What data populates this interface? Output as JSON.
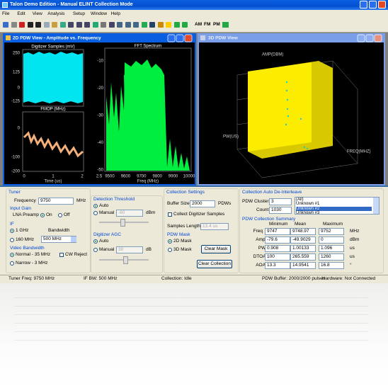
{
  "window_title": "Talon Demo Edition - Manual ELINT Collection Mode",
  "menu": [
    "File",
    "Edit",
    "View",
    "Analysis",
    "Setup",
    "Window",
    "Help"
  ],
  "toolbar": [
    "AM",
    "FM",
    "PM"
  ],
  "view_2d": {
    "title": "2D PDW View - Amplitude vs. Frequency",
    "digitizer": {
      "title": "Digitizer Samples (mV)",
      "yticks": [
        "250",
        "125",
        "0",
        "-125"
      ]
    },
    "fmop": {
      "title": "FMOP (MHz)",
      "yticks": [
        "0",
        "-100",
        "-200"
      ],
      "xticks": [
        "0",
        "1",
        "2",
        "2.5"
      ],
      "xlabel": "Time (us)"
    },
    "fft": {
      "title": "FFT Spectrum",
      "yticks": [
        "-10",
        "-20",
        "-30",
        "-40",
        "-50"
      ],
      "xticks": [
        "9500",
        "9600",
        "9700",
        "9800",
        "9900",
        "10000"
      ],
      "xlabel": "Freq (MHz)"
    }
  },
  "view_3d": {
    "title": "3D PDW View",
    "z_label": "AMP(DBM)",
    "y_label": "PW(US)",
    "x_label": "FREQ(MHZ)"
  },
  "tuner": {
    "title": "Tuner",
    "frequency_label": "Frequency",
    "frequency": "9750",
    "frequency_unit": "MHz",
    "input_gain": "Input Gain",
    "lna": "LNA Preamp",
    "on": "On",
    "off": "Off",
    "if": "IF",
    "if_1ghz": "1 GHz",
    "bandwidth": "Bandwidth",
    "if_160": "160 MHz",
    "bandwidth_value": "500 MHz",
    "video_bandwidth": "Video Bandwidth",
    "normal": "Normal - 35 MHz",
    "cw_reject": "CW Reject",
    "narrow": "Narrow - 3 MHz"
  },
  "detection": {
    "title": "Detection Threshold",
    "auto": "Auto",
    "manual": "Manual",
    "value": "-60",
    "unit": "dBm"
  },
  "agc": {
    "title": "Digitizer AGC",
    "auto": "Auto",
    "manual": "Manual",
    "value": "30",
    "unit": "dB"
  },
  "collection": {
    "title": "Collection Settings",
    "buffer_label": "Buffer Size:",
    "buffer": "2000",
    "buffer_unit": "PDWs",
    "collect_samples": "Collect Digitizer Samples",
    "samples_length": "Samples Length:",
    "samples_value": "13.4 us",
    "mask_title": "PDW Mask",
    "mask_2d": "2D Mask",
    "mask_3d": "3D Mask",
    "clear_mask": "Clear Mask",
    "clear_collection": "Clear Collection"
  },
  "deinterleave": {
    "title": "Collection Auto De-Interleave",
    "clusters_label": "PDW Clusters:",
    "clusters": "3",
    "count_label": "Count",
    "count": "1030",
    "list": [
      "(All)",
      "Unknown #1",
      "Unknown #2",
      "Unknown #3"
    ]
  },
  "summary": {
    "title": "PDW Collection Summary",
    "headers": [
      "Minimum",
      "Mean",
      "Maximum"
    ],
    "rows": [
      [
        "Freq",
        "9747",
        "9748.97",
        "9752",
        "MHz"
      ],
      [
        "Amp",
        "-79.6",
        "-49.9029",
        "0",
        "dBm"
      ],
      [
        "PW",
        "0.908",
        "1.00133",
        "1.096",
        "us"
      ],
      [
        "DTOA",
        "100",
        "265.559",
        "1260",
        "us"
      ],
      [
        "AOA",
        "13.3",
        "14.9541",
        "16.8",
        "°"
      ]
    ]
  },
  "status": [
    "Tuner Freq: 9750 MHz",
    "IF BW: 500 MHz",
    "Collection: Idle",
    "PDW Buffer: 2000/2000 pulses",
    "Hardware: Not Connected"
  ]
}
